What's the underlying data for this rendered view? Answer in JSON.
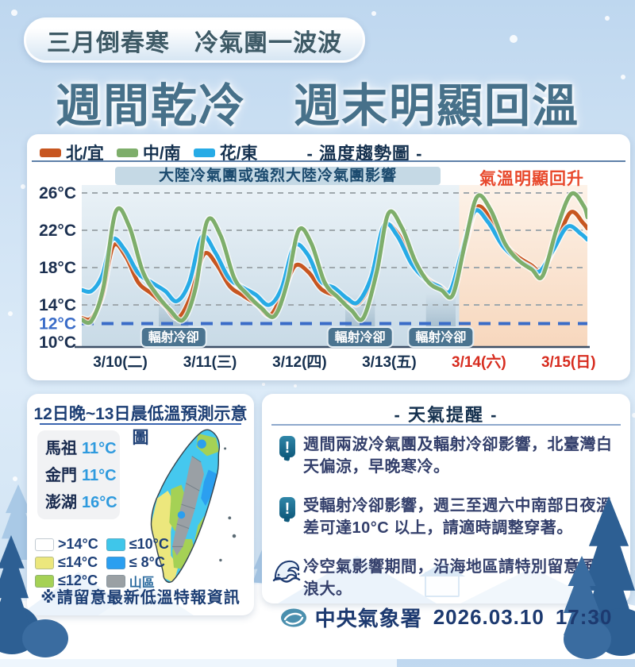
{
  "header": {
    "banner": "三月倒春寒　冷氣團一波波",
    "title": "週間乾冷　週末明顯回溫"
  },
  "trend": {
    "legend": [
      {
        "label": "北/宜",
        "color": "#c75620"
      },
      {
        "label": "中/南",
        "color": "#7eae6b"
      },
      {
        "label": "花/東",
        "color": "#27abe6"
      }
    ],
    "chart_label": "- 溫度趨勢圖 -",
    "cold_banner": "大陸冷氣團或強烈大陸冷氣團影響",
    "warm_note": "氣溫明顯回升",
    "radiation_label": "輻射冷卻"
  },
  "chart_data": {
    "type": "line",
    "title": "溫度趨勢圖",
    "ylabel": "°C",
    "ylim": [
      10,
      27
    ],
    "grid_temps": [
      26,
      22,
      18,
      14
    ],
    "baseline_temp": 12,
    "y_ticks": [
      {
        "label": "26°C",
        "temp": 26,
        "color": "#1c3050"
      },
      {
        "label": "22°C",
        "temp": 22,
        "color": "#1c3050"
      },
      {
        "label": "18°C",
        "temp": 18,
        "color": "#1c3050"
      },
      {
        "label": "14°C",
        "temp": 14,
        "color": "#1c3050"
      },
      {
        "label": "12°C",
        "temp": 12,
        "color": "#3a6cc8"
      },
      {
        "label": "10°C",
        "temp": 10,
        "color": "#1c3050"
      }
    ],
    "x_labels": [
      {
        "label": "3/10(二)",
        "weekend": false
      },
      {
        "label": "3/11(三)",
        "weekend": false
      },
      {
        "label": "3/12(四)",
        "weekend": false
      },
      {
        "label": "3/13(五)",
        "weekend": false
      },
      {
        "label": "3/14(六)",
        "weekend": true
      },
      {
        "label": "3/15(日)",
        "weekend": true
      }
    ],
    "cooling_bands": [
      [
        0.93,
        1.26
      ],
      [
        3.01,
        3.34
      ],
      [
        3.91,
        4.24
      ]
    ],
    "warm_region_start": 4.28,
    "series": [
      {
        "name": "北/宜",
        "color": "#c75620",
        "points": [
          [
            0.07,
            12.6
          ],
          [
            0.18,
            12.6
          ],
          [
            0.3,
            15.0
          ],
          [
            0.42,
            20.3
          ],
          [
            0.56,
            19.2
          ],
          [
            0.7,
            16.4
          ],
          [
            0.85,
            15.2
          ],
          [
            1.0,
            13.9
          ],
          [
            1.14,
            12.6
          ],
          [
            1.28,
            14.8
          ],
          [
            1.43,
            19.4
          ],
          [
            1.57,
            18.4
          ],
          [
            1.72,
            16.0
          ],
          [
            1.87,
            15.0
          ],
          [
            2.03,
            14.0
          ],
          [
            2.17,
            12.9
          ],
          [
            2.31,
            15.2
          ],
          [
            2.45,
            18.2
          ],
          [
            2.6,
            17.5
          ],
          [
            2.74,
            15.7
          ],
          [
            2.9,
            15.0
          ],
          [
            3.05,
            14.4
          ],
          [
            3.16,
            14.2
          ],
          [
            3.3,
            16.6
          ],
          [
            3.45,
            22.3
          ],
          [
            3.6,
            21.6
          ],
          [
            3.76,
            18.6
          ],
          [
            3.92,
            16.8
          ],
          [
            4.06,
            16.0
          ],
          [
            4.19,
            15.6
          ],
          [
            4.33,
            19.8
          ],
          [
            4.47,
            24.4
          ],
          [
            4.62,
            23.4
          ],
          [
            4.78,
            20.6
          ],
          [
            4.93,
            19.2
          ],
          [
            5.08,
            18.3
          ],
          [
            5.2,
            17.7
          ],
          [
            5.35,
            20.3
          ],
          [
            5.52,
            23.9
          ],
          [
            5.66,
            22.8
          ],
          [
            5.71,
            22.2
          ]
        ]
      },
      {
        "name": "花/東",
        "color": "#27abe6",
        "points": [
          [
            0.07,
            15.6
          ],
          [
            0.18,
            15.5
          ],
          [
            0.3,
            17.2
          ],
          [
            0.41,
            21.0
          ],
          [
            0.55,
            19.9
          ],
          [
            0.7,
            17.4
          ],
          [
            0.85,
            16.4
          ],
          [
            1.0,
            15.5
          ],
          [
            1.13,
            14.4
          ],
          [
            1.27,
            16.4
          ],
          [
            1.41,
            21.3
          ],
          [
            1.56,
            19.6
          ],
          [
            1.71,
            16.9
          ],
          [
            1.86,
            15.9
          ],
          [
            2.01,
            15.1
          ],
          [
            2.16,
            14.0
          ],
          [
            2.3,
            15.8
          ],
          [
            2.44,
            20.3
          ],
          [
            2.59,
            19.4
          ],
          [
            2.73,
            16.6
          ],
          [
            2.89,
            15.8
          ],
          [
            3.03,
            14.7
          ],
          [
            3.15,
            14.3
          ],
          [
            3.3,
            17.0
          ],
          [
            3.44,
            22.5
          ],
          [
            3.59,
            21.4
          ],
          [
            3.75,
            18.4
          ],
          [
            3.91,
            16.7
          ],
          [
            4.05,
            16.0
          ],
          [
            4.18,
            15.5
          ],
          [
            4.31,
            19.7
          ],
          [
            4.45,
            24.0
          ],
          [
            4.6,
            22.9
          ],
          [
            4.76,
            20.4
          ],
          [
            4.91,
            19.0
          ],
          [
            5.06,
            18.1
          ],
          [
            5.18,
            17.6
          ],
          [
            5.33,
            19.9
          ],
          [
            5.49,
            22.4
          ],
          [
            5.64,
            21.6
          ],
          [
            5.71,
            21.0
          ]
        ]
      },
      {
        "name": "中/南",
        "color": "#7eae6b",
        "points": [
          [
            0.07,
            12.4
          ],
          [
            0.18,
            12.3
          ],
          [
            0.31,
            15.8
          ],
          [
            0.45,
            24.0
          ],
          [
            0.6,
            22.4
          ],
          [
            0.75,
            17.6
          ],
          [
            0.9,
            15.2
          ],
          [
            1.05,
            13.5
          ],
          [
            1.2,
            12.4
          ],
          [
            1.34,
            15.8
          ],
          [
            1.47,
            23.0
          ],
          [
            1.62,
            21.4
          ],
          [
            1.77,
            16.9
          ],
          [
            1.92,
            15.1
          ],
          [
            2.07,
            13.7
          ],
          [
            2.22,
            12.8
          ],
          [
            2.36,
            16.3
          ],
          [
            2.49,
            22.0
          ],
          [
            2.63,
            20.6
          ],
          [
            2.78,
            16.4
          ],
          [
            2.93,
            14.8
          ],
          [
            3.08,
            13.4
          ],
          [
            3.21,
            12.6
          ],
          [
            3.36,
            17.5
          ],
          [
            3.49,
            23.8
          ],
          [
            3.64,
            22.3
          ],
          [
            3.79,
            18.7
          ],
          [
            3.94,
            16.4
          ],
          [
            4.08,
            15.6
          ],
          [
            4.21,
            15.1
          ],
          [
            4.35,
            20.8
          ],
          [
            4.48,
            25.6
          ],
          [
            4.63,
            24.2
          ],
          [
            4.79,
            20.6
          ],
          [
            4.94,
            18.8
          ],
          [
            5.09,
            17.8
          ],
          [
            5.21,
            17.1
          ],
          [
            5.37,
            22.2
          ],
          [
            5.53,
            25.9
          ],
          [
            5.67,
            24.6
          ],
          [
            5.71,
            23.4
          ]
        ]
      }
    ]
  },
  "map_panel": {
    "title": "12日晚~13日晨低溫預測示意圖",
    "islands": [
      {
        "name": "馬祖",
        "temp": "11°C"
      },
      {
        "name": "金門",
        "temp": "11°C"
      },
      {
        "name": "澎湖",
        "temp": "16°C"
      }
    ],
    "legend": [
      {
        "label": ">14°C",
        "color": "#ffffff"
      },
      {
        "label": "≤14°C",
        "color": "#ece77d"
      },
      {
        "label": "≤12°C",
        "color": "#a5d155"
      },
      {
        "label": "≤10°C",
        "color": "#3fc6ea"
      },
      {
        "label": "≤ 8°C",
        "color": "#2b9ff0"
      },
      {
        "label": "山區",
        "color": "#9aa0a4"
      }
    ],
    "note": "※請留意最新低溫特報資訊"
  },
  "reminders": {
    "title": "- 天氣提醒 -",
    "items": [
      {
        "icon": "exclamation",
        "text": "週間兩波冷氣團及輻射冷卻影響，北臺灣白天偏涼，早晚寒冷。"
      },
      {
        "icon": "exclamation",
        "text": "受輻射冷卻影響，週三至週六中南部日夜溫差可達10°C 以上，請適時調整穿著。"
      },
      {
        "icon": "wave",
        "text": "冷空氣影響期間，沿海地區請特別留意風強浪大。"
      }
    ]
  },
  "footer": {
    "agency": "中央氣象署",
    "date": "2026.03.10",
    "time": "17:30"
  }
}
